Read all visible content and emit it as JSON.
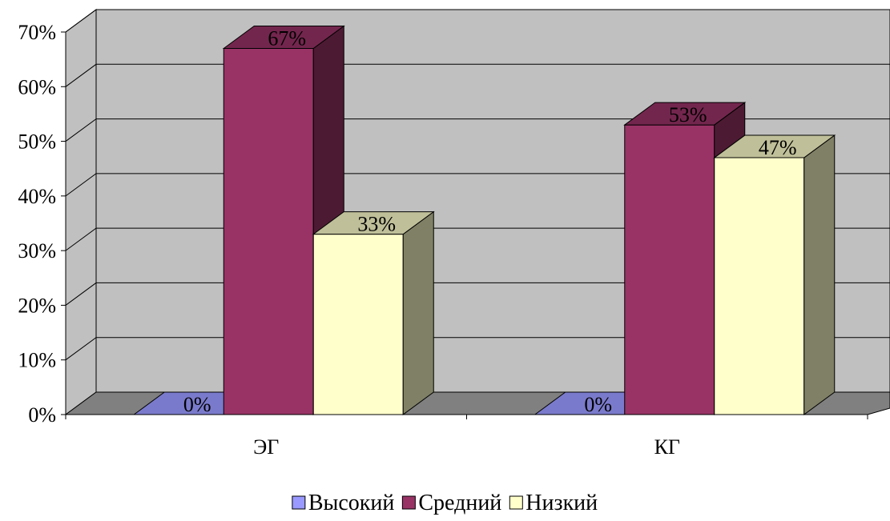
{
  "chart_data": {
    "type": "bar",
    "categories": [
      "ЭГ",
      "КГ"
    ],
    "series": [
      {
        "name": "Высокий",
        "values": [
          0,
          0
        ],
        "labels": [
          "0%",
          "0%"
        ],
        "color": "#9999ff"
      },
      {
        "name": "Средний",
        "values": [
          67,
          53
        ],
        "labels": [
          "67%",
          "53%"
        ],
        "color": "#993366"
      },
      {
        "name": "Низкий",
        "values": [
          33,
          47
        ],
        "labels": [
          "33%",
          "47%"
        ],
        "color": "#ffffcc"
      }
    ],
    "y_ticks": [
      "0%",
      "10%",
      "20%",
      "30%",
      "40%",
      "50%",
      "60%",
      "70%"
    ],
    "ylim": [
      0,
      70
    ],
    "grid": true,
    "legend_position": "bottom",
    "wall_color": "#c0c0c0",
    "floor_color": "#808080"
  }
}
